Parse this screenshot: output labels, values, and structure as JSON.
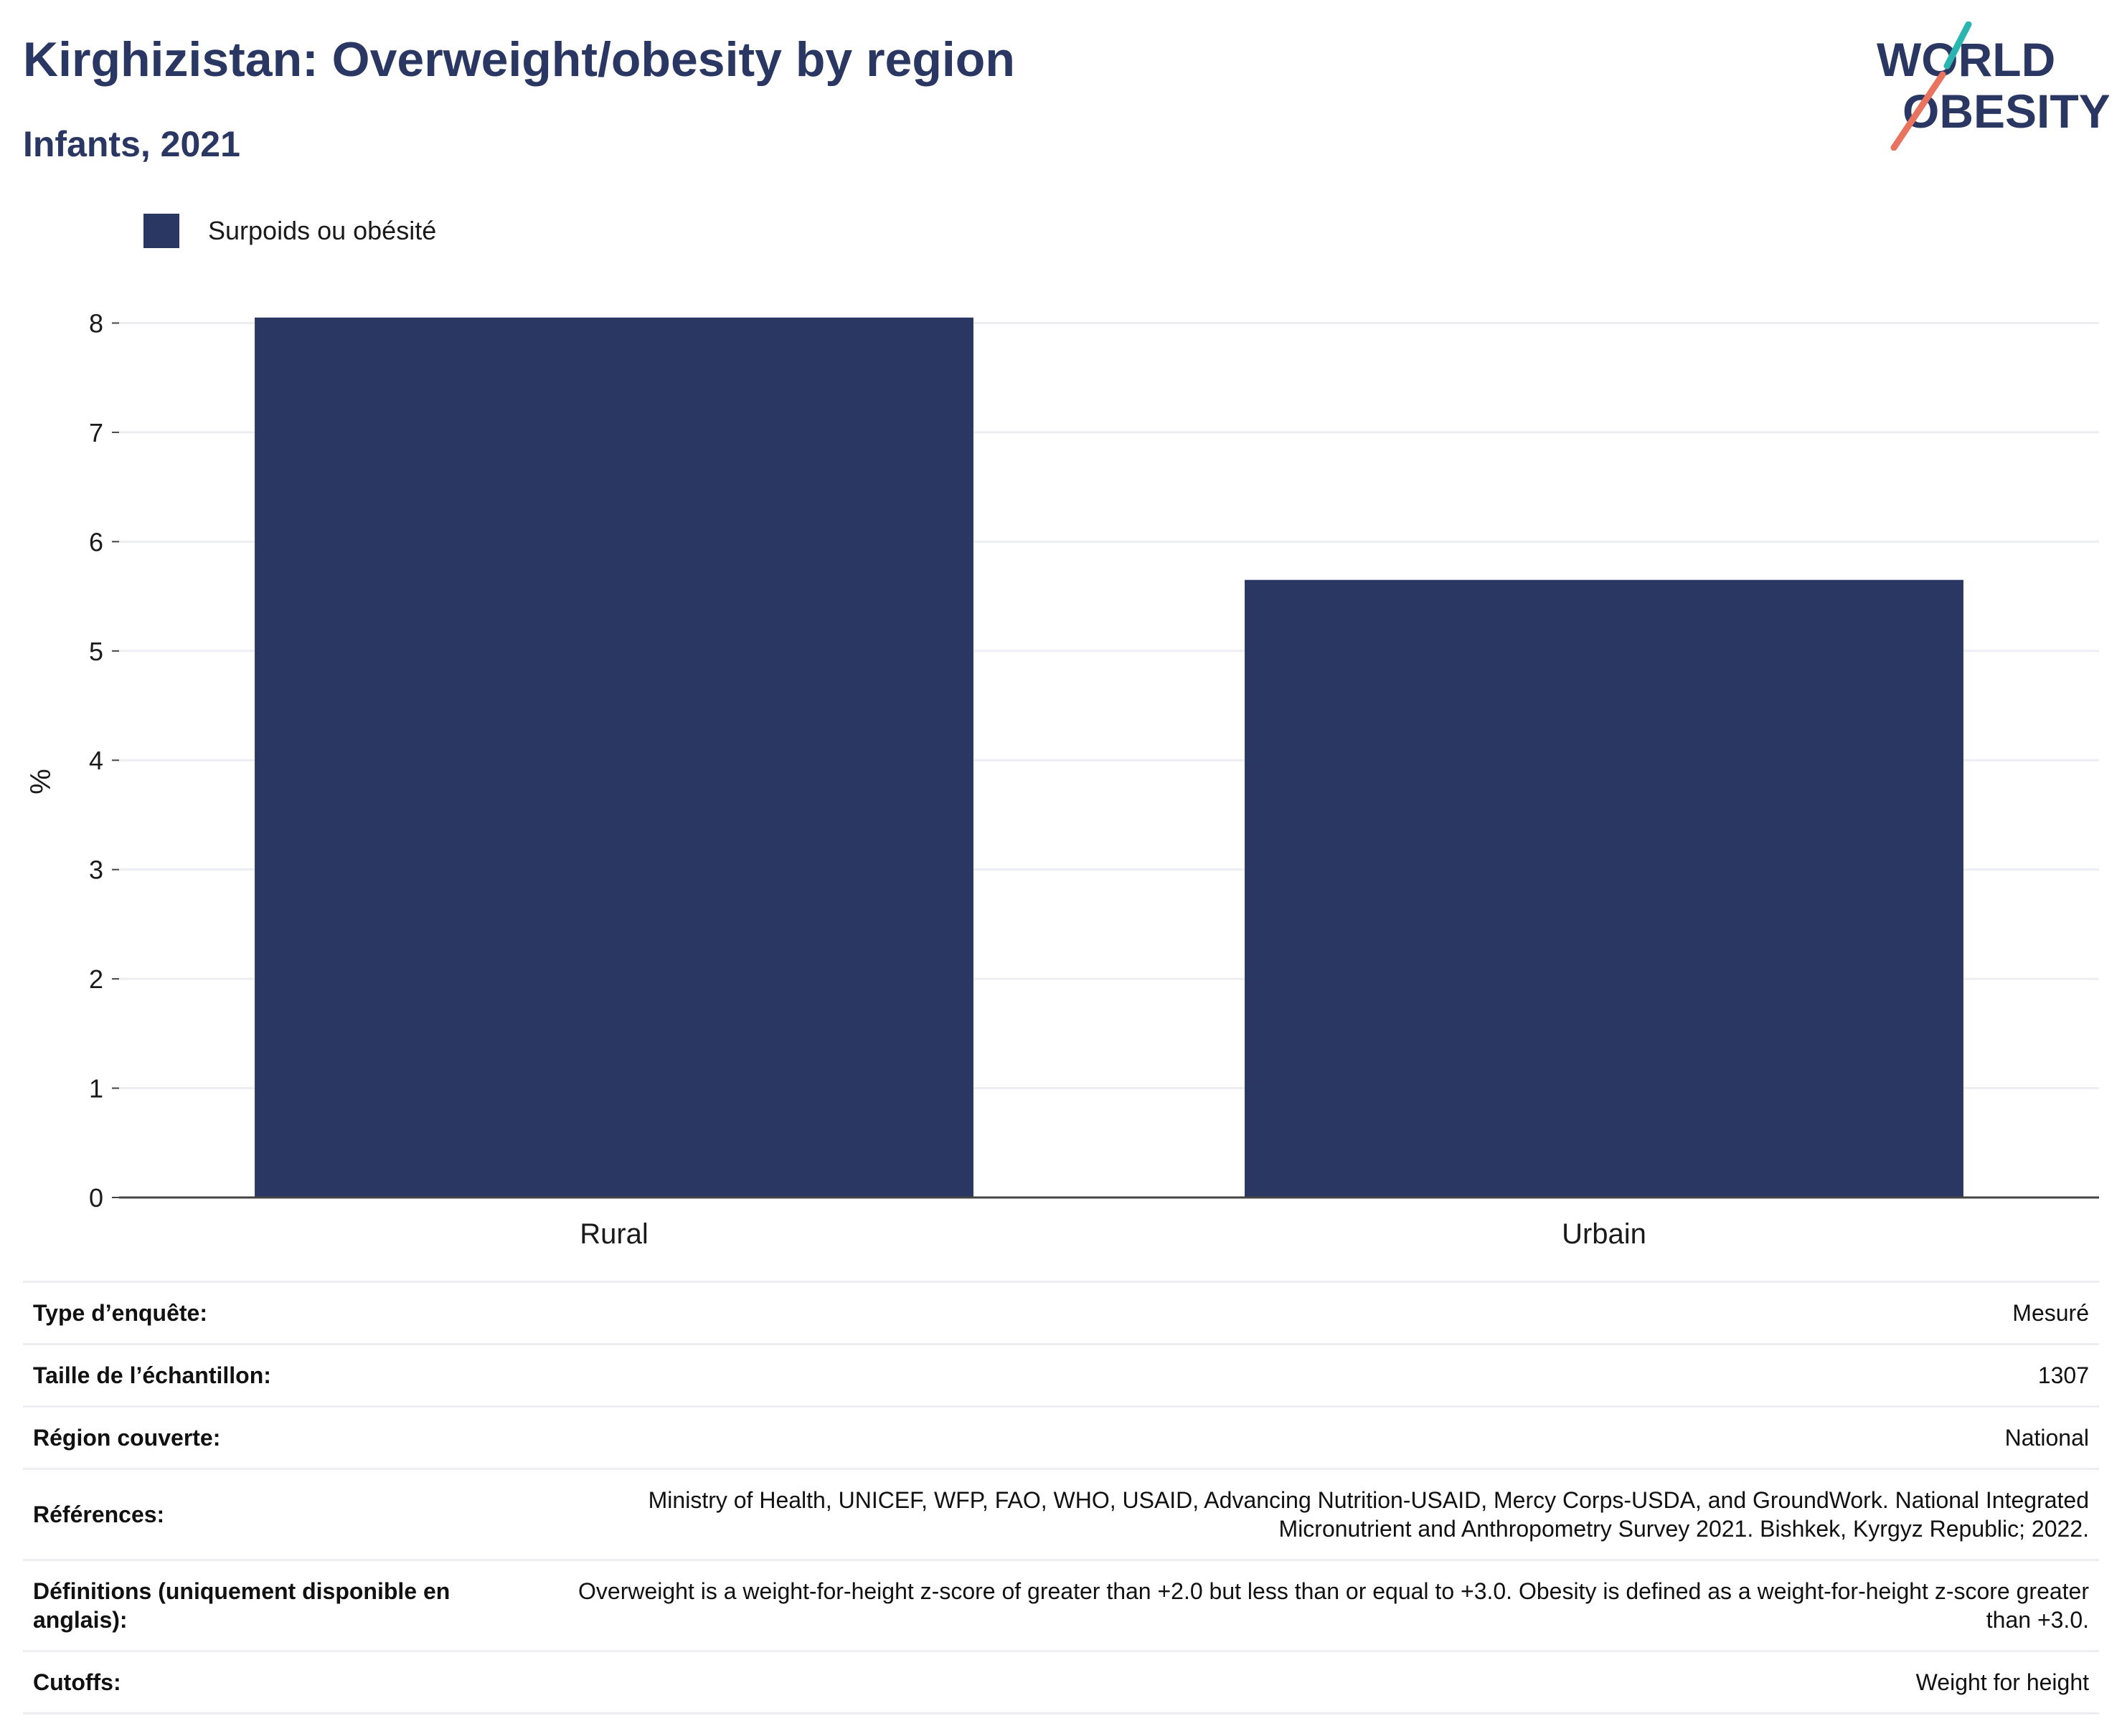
{
  "header": {
    "title": "Kirghizistan: Overweight/obesity by region",
    "subtitle": "Infants, 2021",
    "logo_line1": "WORLD",
    "logo_line2": "OBESITY"
  },
  "colors": {
    "primary": "#2a3762",
    "logo_teal": "#2bb5b0",
    "logo_coral": "#e8735f",
    "grid": "#eceef2"
  },
  "chart_data": {
    "type": "bar",
    "categories": [
      "Rural",
      "Urbain"
    ],
    "series": [
      {
        "name": "Surpoids ou obésité",
        "values": [
          8.05,
          5.65
        ]
      }
    ],
    "ylabel": "%",
    "ylim": [
      0,
      8.2
    ],
    "yticks": [
      0,
      1,
      2,
      3,
      4,
      5,
      6,
      7,
      8
    ],
    "grid": true,
    "legend_position": "top-left"
  },
  "metadata": [
    {
      "label": "Type d’enquête:",
      "value": "Mesuré"
    },
    {
      "label": "Taille de l’échantillon:",
      "value": "1307"
    },
    {
      "label": "Région couverte:",
      "value": "National"
    },
    {
      "label": "Références:",
      "value": "Ministry of Health, UNICEF, WFP, FAO, WHO, USAID, Advancing Nutrition-USAID, Mercy Corps-USDA, and GroundWork. National Integrated Micronutrient and Anthropometry Survey 2021. Bishkek, Kyrgyz Republic; 2022."
    },
    {
      "label": "Définitions (uniquement disponible en anglais):",
      "value": "Overweight is a weight-for-height z-score of greater than +2.0 but less than or equal to +3.0. Obesity is defined as a weight-for-height z-score greater than +3.0."
    },
    {
      "label": "Cutoffs:",
      "value": "Weight for height"
    }
  ]
}
